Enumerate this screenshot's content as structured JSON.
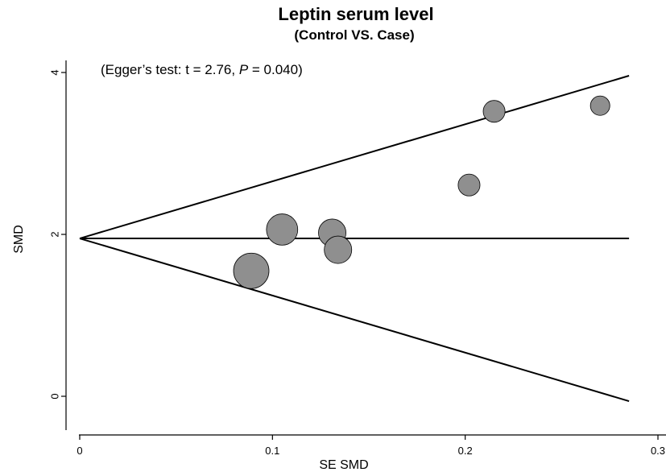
{
  "chart_data": {
    "type": "scatter",
    "title": "Leptin serum level",
    "subtitle": "(Control VS. Case)",
    "xlabel": "SE SMD",
    "ylabel": "SMD",
    "xlim": [
      0,
      0.3
    ],
    "ylim": [
      0,
      4
    ],
    "x_ticks": [
      "0",
      "0.1",
      "0.2",
      "0.3"
    ],
    "y_ticks": [
      "0",
      "2",
      "4"
    ],
    "annotation": {
      "prefix": "(Egger’s test: t = 2.76, ",
      "p_symbol": "P",
      "suffix": " = 0.040)"
    },
    "pooled_estimate": 1.95,
    "funnel_se_max": 0.285,
    "funnel_upper_end": 3.96,
    "funnel_lower_end": -0.06,
    "points": [
      {
        "se": 0.089,
        "smd": 1.55,
        "weight": 1.0
      },
      {
        "se": 0.105,
        "smd": 2.06,
        "weight": 0.78
      },
      {
        "se": 0.131,
        "smd": 2.02,
        "weight": 0.6
      },
      {
        "se": 0.134,
        "smd": 1.81,
        "weight": 0.6
      },
      {
        "se": 0.202,
        "smd": 2.61,
        "weight": 0.38
      },
      {
        "se": 0.215,
        "smd": 3.52,
        "weight": 0.38
      },
      {
        "se": 0.27,
        "smd": 3.59,
        "weight": 0.3
      }
    ],
    "colors": {
      "points": "#8f8f8f",
      "stroke": "#000000",
      "line": "#000000"
    }
  }
}
